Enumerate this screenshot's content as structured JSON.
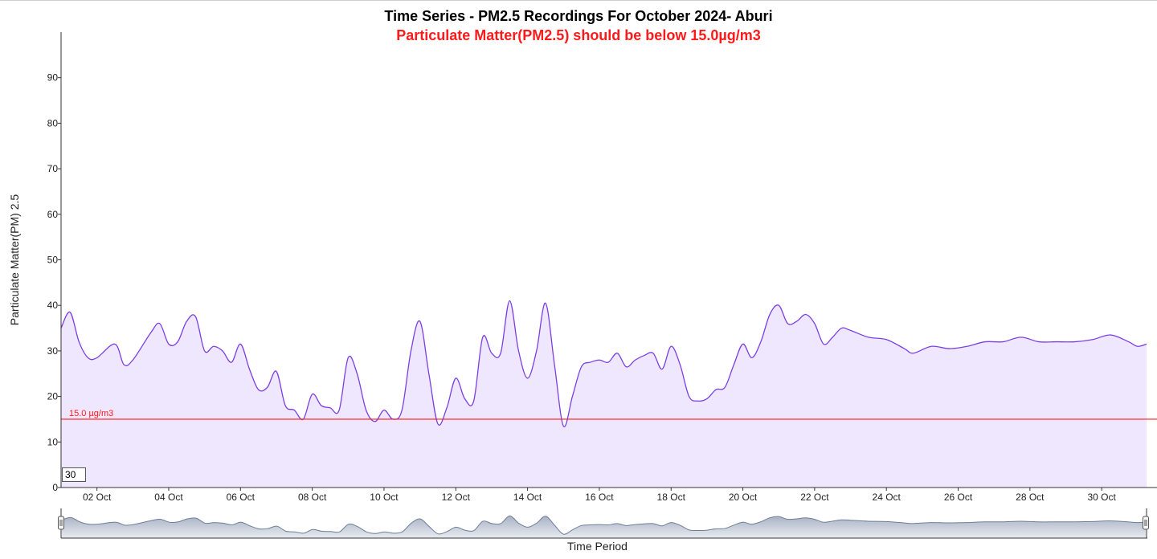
{
  "chart_data": {
    "type": "area",
    "title": "Time Series - PM2.5 Recordings For October 2024- Aburi",
    "subtitle": "Particulate Matter(PM2.5) should be below 15.0µg/m3",
    "xlabel": "Time Period",
    "ylabel": "Particulate Matter(PM) 2.5",
    "ylim": [
      0,
      100
    ],
    "xlim": [
      "2024-10-01T00:00",
      "2024-10-31T06:00"
    ],
    "yticks": [
      0,
      10,
      20,
      30,
      40,
      50,
      60,
      70,
      80,
      90
    ],
    "xticks": [
      "02 Oct",
      "04 Oct",
      "06 Oct",
      "08 Oct",
      "10 Oct",
      "12 Oct",
      "14 Oct",
      "16 Oct",
      "18 Oct",
      "20 Oct",
      "22 Oct",
      "24 Oct",
      "26 Oct",
      "28 Oct",
      "30 Oct"
    ],
    "threshold": {
      "value": 15.0,
      "label": "15.0 µg/m3",
      "color": "#ff1a1a"
    },
    "series": [
      {
        "color": "#7b3fe4",
        "fill": "#efe7fd",
        "points": [
          [
            "2024-10-01T00:00",
            35
          ],
          [
            "2024-10-01T06:00",
            38.5
          ],
          [
            "2024-10-01T12:00",
            32
          ],
          [
            "2024-10-01T18:00",
            28.5
          ],
          [
            "2024-10-02T00:00",
            28.5
          ],
          [
            "2024-10-02T12:00",
            31.5
          ],
          [
            "2024-10-02T18:00",
            27
          ],
          [
            "2024-10-03T00:00",
            28
          ],
          [
            "2024-10-03T12:00",
            34
          ],
          [
            "2024-10-03T18:00",
            36
          ],
          [
            "2024-10-04T00:00",
            31.5
          ],
          [
            "2024-10-04T06:00",
            32
          ],
          [
            "2024-10-04T12:00",
            36.5
          ],
          [
            "2024-10-04T18:00",
            37.5
          ],
          [
            "2024-10-05T00:00",
            30
          ],
          [
            "2024-10-05T06:00",
            31
          ],
          [
            "2024-10-05T12:00",
            30
          ],
          [
            "2024-10-05T18:00",
            27.5
          ],
          [
            "2024-10-06T00:00",
            31.5
          ],
          [
            "2024-10-06T06:00",
            26
          ],
          [
            "2024-10-06T12:00",
            21.5
          ],
          [
            "2024-10-06T18:00",
            22
          ],
          [
            "2024-10-07T00:00",
            25.5
          ],
          [
            "2024-10-07T06:00",
            18
          ],
          [
            "2024-10-07T12:00",
            17
          ],
          [
            "2024-10-07T18:00",
            15
          ],
          [
            "2024-10-08T00:00",
            20.5
          ],
          [
            "2024-10-08T06:00",
            18
          ],
          [
            "2024-10-08T12:00",
            17.5
          ],
          [
            "2024-10-08T18:00",
            17
          ],
          [
            "2024-10-09T00:00",
            28.5
          ],
          [
            "2024-10-09T06:00",
            25
          ],
          [
            "2024-10-09T12:00",
            17
          ],
          [
            "2024-10-09T18:00",
            14.5
          ],
          [
            "2024-10-10T00:00",
            17
          ],
          [
            "2024-10-10T06:00",
            15
          ],
          [
            "2024-10-10T12:00",
            17
          ],
          [
            "2024-10-10T18:00",
            30
          ],
          [
            "2024-10-11T00:00",
            36.5
          ],
          [
            "2024-10-11T06:00",
            25
          ],
          [
            "2024-10-11T12:00",
            14
          ],
          [
            "2024-10-11T18:00",
            17.5
          ],
          [
            "2024-10-12T00:00",
            24
          ],
          [
            "2024-10-12T06:00",
            19.5
          ],
          [
            "2024-10-12T12:00",
            19
          ],
          [
            "2024-10-12T18:00",
            33
          ],
          [
            "2024-10-13T00:00",
            29.5
          ],
          [
            "2024-10-13T06:00",
            29.5
          ],
          [
            "2024-10-13T12:00",
            41
          ],
          [
            "2024-10-13T18:00",
            30
          ],
          [
            "2024-10-14T00:00",
            24
          ],
          [
            "2024-10-14T06:00",
            30
          ],
          [
            "2024-10-14T12:00",
            40.5
          ],
          [
            "2024-10-14T18:00",
            27
          ],
          [
            "2024-10-15T00:00",
            13.5
          ],
          [
            "2024-10-15T06:00",
            20
          ],
          [
            "2024-10-15T12:00",
            26.5
          ],
          [
            "2024-10-15T18:00",
            27.5
          ],
          [
            "2024-10-16T00:00",
            28
          ],
          [
            "2024-10-16T06:00",
            27.5
          ],
          [
            "2024-10-16T12:00",
            29.5
          ],
          [
            "2024-10-16T18:00",
            26.5
          ],
          [
            "2024-10-17T00:00",
            28
          ],
          [
            "2024-10-17T06:00",
            29
          ],
          [
            "2024-10-17T12:00",
            29.5
          ],
          [
            "2024-10-17T18:00",
            26
          ],
          [
            "2024-10-18T00:00",
            31
          ],
          [
            "2024-10-18T06:00",
            27
          ],
          [
            "2024-10-18T12:00",
            20
          ],
          [
            "2024-10-18T18:00",
            19
          ],
          [
            "2024-10-19T00:00",
            19.5
          ],
          [
            "2024-10-19T06:00",
            21.5
          ],
          [
            "2024-10-19T12:00",
            22
          ],
          [
            "2024-10-19T18:00",
            27
          ],
          [
            "2024-10-20T00:00",
            31.5
          ],
          [
            "2024-10-20T06:00",
            28.5
          ],
          [
            "2024-10-20T12:00",
            32
          ],
          [
            "2024-10-20T18:00",
            38
          ],
          [
            "2024-10-21T00:00",
            40
          ],
          [
            "2024-10-21T06:00",
            36
          ],
          [
            "2024-10-21T12:00",
            36.5
          ],
          [
            "2024-10-21T18:00",
            38
          ],
          [
            "2024-10-22T00:00",
            36
          ],
          [
            "2024-10-22T06:00",
            31.5
          ],
          [
            "2024-10-22T12:00",
            33
          ],
          [
            "2024-10-22T18:00",
            35
          ],
          [
            "2024-10-23T00:00",
            34.5
          ],
          [
            "2024-10-23T12:00",
            33
          ],
          [
            "2024-10-24T00:00",
            32.5
          ],
          [
            "2024-10-24T12:00",
            30.5
          ],
          [
            "2024-10-24T18:00",
            29.5
          ],
          [
            "2024-10-25T06:00",
            31
          ],
          [
            "2024-10-25T18:00",
            30.5
          ],
          [
            "2024-10-26T06:00",
            31
          ],
          [
            "2024-10-26T18:00",
            32
          ],
          [
            "2024-10-27T06:00",
            32
          ],
          [
            "2024-10-27T18:00",
            33
          ],
          [
            "2024-10-28T06:00",
            32
          ],
          [
            "2024-10-28T18:00",
            32
          ],
          [
            "2024-10-29T06:00",
            32
          ],
          [
            "2024-10-29T18:00",
            32.5
          ],
          [
            "2024-10-30T06:00",
            33.5
          ],
          [
            "2024-10-30T18:00",
            32
          ],
          [
            "2024-10-31T00:00",
            31
          ],
          [
            "2024-10-31T06:00",
            31.5
          ]
        ]
      }
    ],
    "navigator": {
      "visible": true
    },
    "window_control": "30"
  },
  "colors": {
    "line": "#7b3fe4",
    "area": "#efe7fd",
    "threshold": "#ff1a1a",
    "navigator_fill": "#a9b2c3",
    "navigator_line": "#6e7f99"
  }
}
